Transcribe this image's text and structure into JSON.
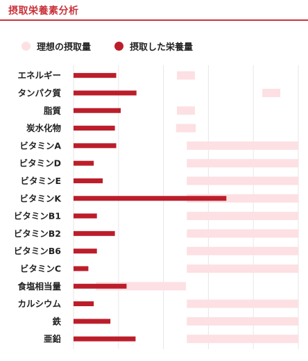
{
  "header": {
    "title": "摂取栄養素分析"
  },
  "legend": {
    "ideal_label": "理想の摂取量",
    "actual_label": "摂取した栄養量"
  },
  "colors": {
    "accent": "#c9323a",
    "ideal": "#fde0e3",
    "actual": "#bb1e2a",
    "grid": "#e6e6e6"
  },
  "chart_data": {
    "type": "bar",
    "orientation": "horizontal",
    "grid": true,
    "categories": [
      "エネルギー",
      "タンパク質",
      "脂質",
      "炭水化物",
      "ビタミンA",
      "ビタミンD",
      "ビタミンE",
      "ビタミンK",
      "ビタミンB1",
      "ビタミンB2",
      "ビタミンB6",
      "ビタミンC",
      "食塩相当量",
      "カルシウム",
      "鉄",
      "亜鉛"
    ],
    "series": [
      {
        "name": "理想の摂取量",
        "ranges": [
          [
            230,
            270
          ],
          [
            420,
            460
          ],
          [
            230,
            270
          ],
          [
            228,
            272
          ],
          [
            252,
            500
          ],
          [
            252,
            500
          ],
          [
            252,
            500
          ],
          [
            252,
            500
          ],
          [
            252,
            500
          ],
          [
            252,
            500
          ],
          [
            252,
            500
          ],
          [
            252,
            500
          ],
          [
            50,
            250
          ],
          [
            252,
            500
          ],
          [
            252,
            500
          ],
          [
            252,
            500
          ]
        ]
      },
      {
        "name": "摂取した栄養量",
        "values": [
          95,
          140,
          105,
          92,
          95,
          45,
          65,
          340,
          52,
          92,
          52,
          33,
          118,
          45,
          82,
          138
        ]
      }
    ],
    "xlim": [
      0,
      500
    ]
  }
}
